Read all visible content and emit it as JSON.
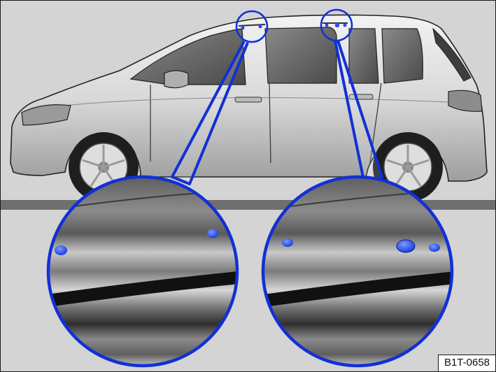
{
  "figure": {
    "code": "B1T-0658",
    "accent_color": "#1230d6",
    "marker_color": "#2a4cf0"
  }
}
